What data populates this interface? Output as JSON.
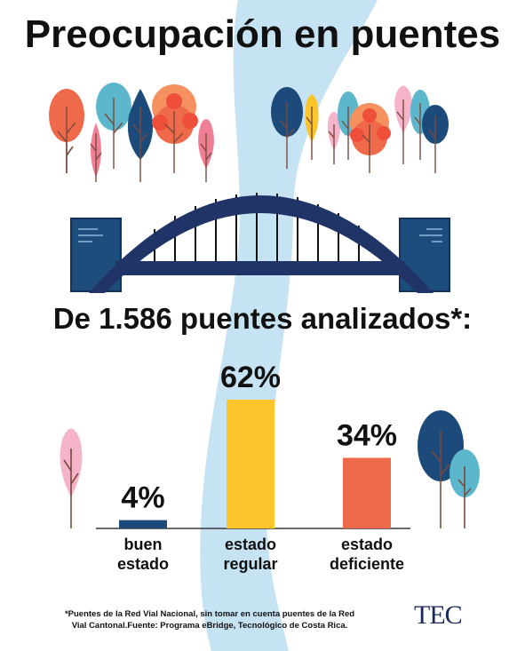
{
  "header": {
    "title": "Preocupación en puentes",
    "subtitle": "De 1.586 puentes analizados*:"
  },
  "chart_data": {
    "type": "bar",
    "categories": [
      [
        "buen",
        "estado"
      ],
      [
        "estado",
        "regular"
      ],
      [
        "estado",
        "deficiente"
      ]
    ],
    "values": [
      4,
      62,
      34
    ],
    "value_labels": [
      "4%",
      "62%",
      "34%"
    ],
    "unit": "%",
    "ylim": [
      0,
      62
    ],
    "grid": false,
    "legend": "none",
    "colors": [
      "#1c4a7a",
      "#fcc52c",
      "#ef6a4a"
    ]
  },
  "footnote": {
    "line1": "*Puentes de la Red Vial Nacional, sin tomar en cuenta puentes de la Red",
    "line2": "Vial Cantonal.Fuente: Programa eBridge, Tecnológico de Costa Rica."
  },
  "logo": {
    "text": "TEC"
  },
  "icons": [
    "river-illustration",
    "tree-icon",
    "arch-bridge-illustration"
  ],
  "palette": {
    "river": "#c6e3f3",
    "bridge": "#213468",
    "pier": "#1d4d7c",
    "coral": "#ef6a4a",
    "pink": "#f07f96",
    "teal": "#5cb6cc",
    "navy": "#1c4a7a",
    "yellow": "#fcc52c",
    "light_pink": "#f5b4c9"
  }
}
